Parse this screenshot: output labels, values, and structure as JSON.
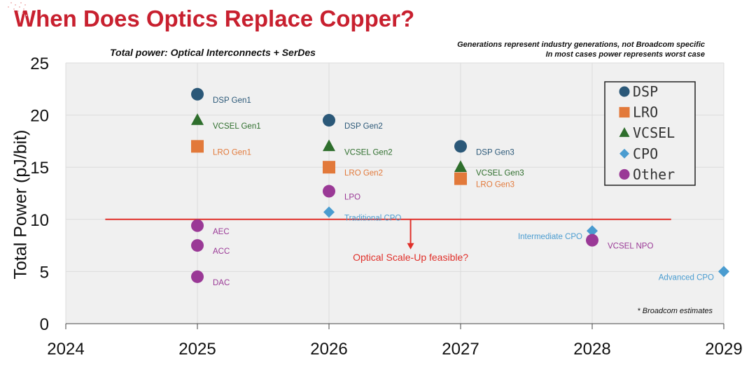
{
  "title": "When Does Optics Replace Copper?",
  "subtitle": "Total power: Optical Interconnects + SerDes",
  "notes": [
    "Generations represent industry generations, not Broadcom specific",
    "In most cases power represents worst case"
  ],
  "footnote": "* Broadcom estimates",
  "colors": {
    "title": "#c8202f",
    "DSP": "#2b5878",
    "LRO": "#e2793a",
    "VCSEL": "#2e6e2c",
    "CPO": "#4a9cd0",
    "Other": "#9a3996",
    "threshold": "#e0302a",
    "plot_bg": "#f0f0f0",
    "grid": "#dcdcdc"
  },
  "chart_data": {
    "type": "scatter",
    "title": "",
    "xlabel": "",
    "ylabel": "Total Power (pJ/bit)",
    "xlim": [
      2024,
      2029
    ],
    "ylim": [
      0,
      25
    ],
    "xticks": [
      "2024",
      "2025",
      "2026",
      "2027",
      "2028",
      "2029"
    ],
    "yticks": [
      "0",
      "5",
      "10",
      "15",
      "20",
      "25"
    ],
    "grid": true,
    "legend_position": "top-right",
    "legend": [
      "DSP",
      "LRO",
      "VCSEL",
      "CPO",
      "Other"
    ],
    "points": [
      {
        "label": "DSP Gen1",
        "series": "DSP",
        "x": 2025,
        "y": 22
      },
      {
        "label": "VCSEL Gen1",
        "series": "VCSEL",
        "x": 2025,
        "y": 19.5
      },
      {
        "label": "LRO Gen1",
        "series": "LRO",
        "x": 2025,
        "y": 17
      },
      {
        "label": "AEC",
        "series": "Other",
        "x": 2025,
        "y": 9.4
      },
      {
        "label": "ACC",
        "series": "Other",
        "x": 2025,
        "y": 7.5
      },
      {
        "label": "DAC",
        "series": "Other",
        "x": 2025,
        "y": 4.5
      },
      {
        "label": "DSP Gen2",
        "series": "DSP",
        "x": 2026,
        "y": 19.5
      },
      {
        "label": "VCSEL Gen2",
        "series": "VCSEL",
        "x": 2026,
        "y": 17
      },
      {
        "label": "LRO Gen2",
        "series": "LRO",
        "x": 2026,
        "y": 15
      },
      {
        "label": "LPO",
        "series": "Other",
        "x": 2026,
        "y": 12.7
      },
      {
        "label": "Traditional CPO",
        "series": "CPO",
        "x": 2026,
        "y": 10.7
      },
      {
        "label": "DSP Gen3",
        "series": "DSP",
        "x": 2027,
        "y": 17
      },
      {
        "label": "VCSEL Gen3",
        "series": "VCSEL",
        "x": 2027,
        "y": 15
      },
      {
        "label": "LRO Gen3",
        "series": "LRO",
        "x": 2027,
        "y": 13.9
      },
      {
        "label": "Intermediate CPO",
        "series": "CPO",
        "x": 2028,
        "y": 8.9
      },
      {
        "label": "VCSEL NPO",
        "series": "Other",
        "x": 2028,
        "y": 8
      },
      {
        "label": "Advanced CPO",
        "series": "CPO",
        "x": 2029,
        "y": 5
      }
    ],
    "threshold": {
      "y": 10,
      "x_start": 2024.3,
      "x_end": 2028.6,
      "arrow_x": 2026.62,
      "label": "Optical Scale-Up feasible?"
    }
  }
}
